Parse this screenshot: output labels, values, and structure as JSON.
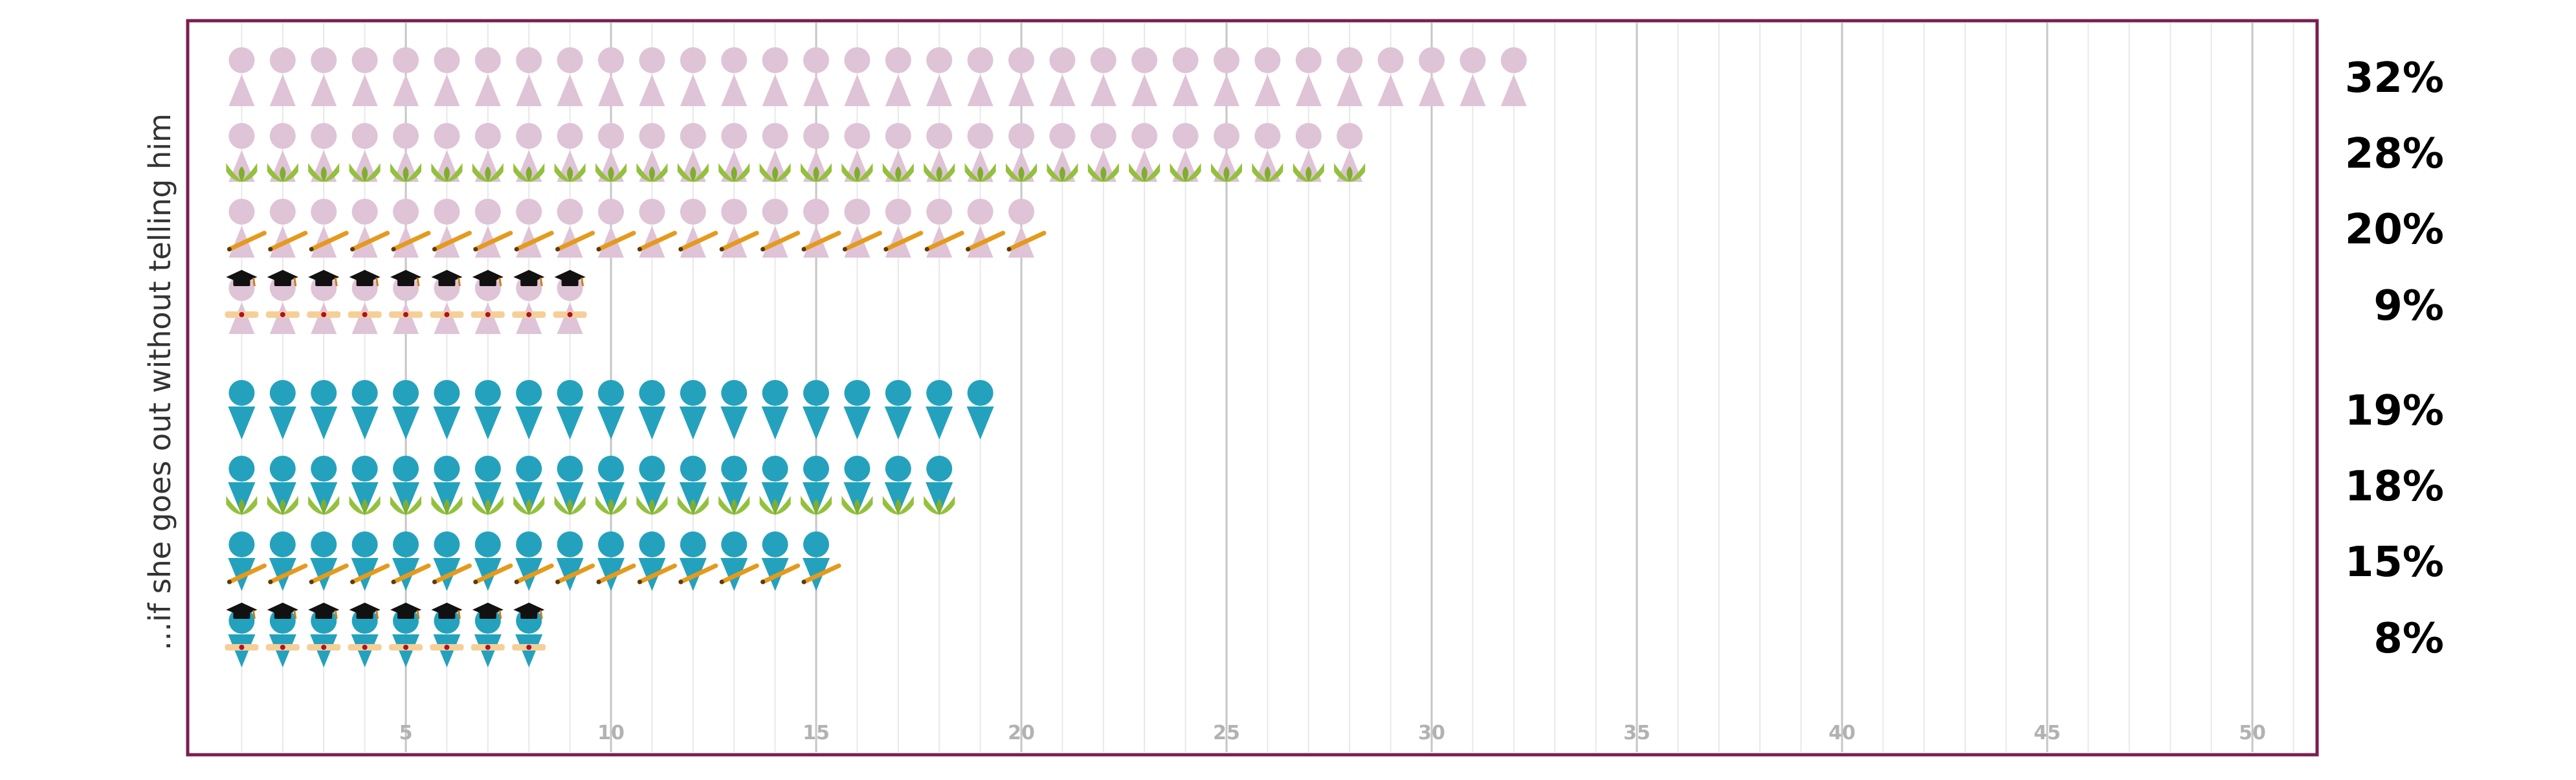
{
  "chart_data": {
    "type": "pictogram",
    "ylabel": "...if she goes out without telling him",
    "xlim": [
      0,
      51
    ],
    "xticks": [
      5,
      10,
      15,
      20,
      25,
      30,
      35,
      40,
      45,
      50
    ],
    "grid": true,
    "series": [
      {
        "gender": "female",
        "education": "none",
        "value": 32,
        "label": "32%"
      },
      {
        "gender": "female",
        "education": "primary",
        "value": 28,
        "label": "28%"
      },
      {
        "gender": "female",
        "education": "secondary",
        "value": 20,
        "label": "20%"
      },
      {
        "gender": "female",
        "education": "higher",
        "value": 9,
        "label": "9%"
      },
      {
        "gender": "male",
        "education": "none",
        "value": 19,
        "label": "19%"
      },
      {
        "gender": "male",
        "education": "primary",
        "value": 18,
        "label": "18%"
      },
      {
        "gender": "male",
        "education": "secondary",
        "value": 15,
        "label": "15%"
      },
      {
        "gender": "male",
        "education": "higher",
        "value": 8,
        "label": "8%"
      }
    ],
    "colors": {
      "frame": "#7a1f4e",
      "female": "#dfc3d7",
      "male": "#24a2bd",
      "sprout": "#93c13d",
      "pencil": "#e59a1d",
      "diploma": "#f6cf98",
      "cap": "#111111",
      "tassel": "#c97e1b"
    }
  }
}
